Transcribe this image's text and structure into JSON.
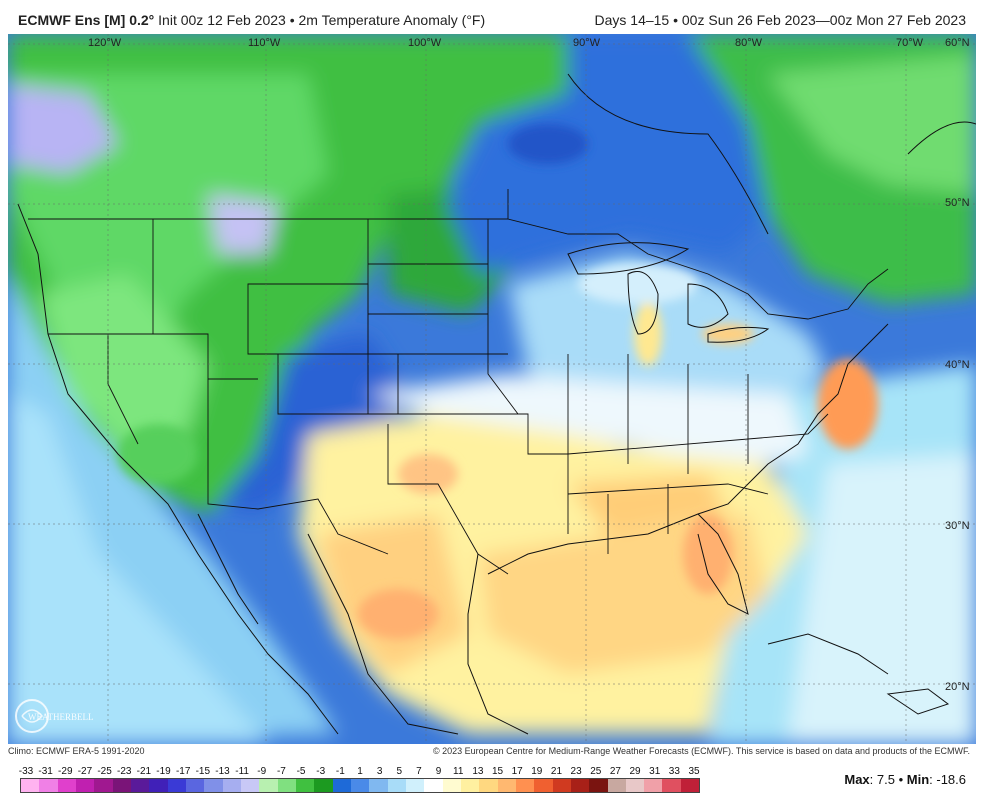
{
  "header": {
    "model": "ECMWF Ens [M] 0.2",
    "degree": "°",
    "init": " Init 00z 12 Feb 2023 • 2m Temperature Anomaly (°F)",
    "valid": "Days 14–15 • 00z Sun 26 Feb 2023—00z Mon 27 Feb 2023"
  },
  "map": {
    "lon_labels": [
      "120°W",
      "110°W",
      "100°W",
      "90°W",
      "80°W",
      "70°W"
    ],
    "lat_labels": [
      "60°N",
      "50°N",
      "40°N",
      "30°N",
      "20°N"
    ]
  },
  "footer": {
    "climo": "Climo: ECMWF ERA-5 1991-2020",
    "copyright": "© 2023 European Centre for Medium-Range Weather Forecasts (ECMWF). This service is based on data and products of the ECMWF.",
    "max_label": "Max",
    "max_value": ": 7.5 • ",
    "min_label": "Min",
    "min_value": ": -18.6",
    "logo_text": "WEATHERBELL"
  },
  "legend": {
    "ticks": [
      "-33",
      "-31",
      "-29",
      "-27",
      "-25",
      "-23",
      "-21",
      "-19",
      "-17",
      "-15",
      "-13",
      "-11",
      "-9",
      "-7",
      "-5",
      "-3",
      "-1",
      "1",
      "3",
      "5",
      "7",
      "9",
      "11",
      "13",
      "15",
      "17",
      "19",
      "21",
      "23",
      "25",
      "27",
      "29",
      "31",
      "33",
      "35"
    ],
    "colors": [
      "#ffb3f0",
      "#f080e6",
      "#e040cc",
      "#c020b0",
      "#a01890",
      "#7a1478",
      "#5a1a9a",
      "#4020b8",
      "#3a3ad6",
      "#5a66e0",
      "#8090e8",
      "#a6aef0",
      "#c8c8f6",
      "#b8f0b0",
      "#80e080",
      "#40c040",
      "#1c9a20",
      "#1e6ad8",
      "#4a8ae8",
      "#80b8f0",
      "#a8dcf8",
      "#d0f0fc",
      "#ffffff",
      "#fffbd0",
      "#fff0a0",
      "#ffd880",
      "#ffb870",
      "#ff9050",
      "#f06030",
      "#d03a20",
      "#a82018",
      "#7a1410",
      "#c8a8a0",
      "#e8c8c8",
      "#f0a0a8",
      "#e05060",
      "#c02038"
    ]
  }
}
